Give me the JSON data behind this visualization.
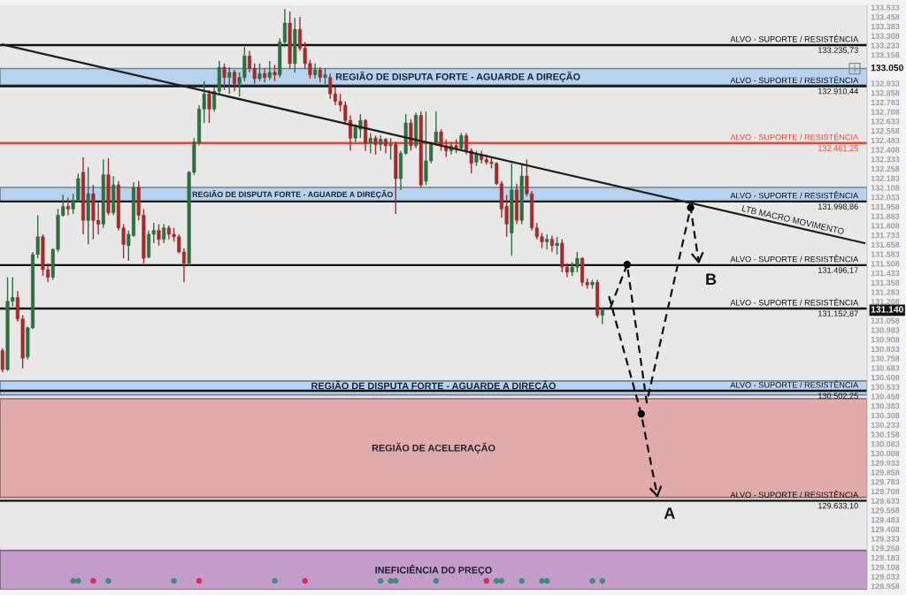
{
  "chart_data": {
    "type": "candlestick",
    "categories": [
      null,
      null,
      null,
      null,
      null,
      null,
      null,
      null,
      null,
      null,
      null,
      null,
      null,
      null,
      null,
      null,
      null,
      null,
      null,
      null,
      null,
      null,
      null,
      null,
      null,
      null,
      null,
      null,
      null,
      null,
      null,
      null,
      null,
      null,
      null,
      null,
      null,
      null,
      null,
      null,
      null,
      null,
      null,
      null,
      null,
      null,
      null,
      null,
      null,
      null,
      null,
      null,
      null,
      null,
      null,
      null,
      null,
      null,
      null,
      null,
      null,
      null,
      null,
      null,
      null,
      null,
      null,
      null,
      null,
      null,
      null,
      null,
      null,
      null,
      null,
      null,
      null,
      null,
      null,
      null,
      null,
      null,
      null,
      null,
      null,
      null,
      null,
      null,
      null,
      null,
      null,
      null,
      null,
      null,
      null,
      null,
      null,
      null,
      null,
      null,
      null,
      null,
      null,
      null,
      null,
      null,
      null,
      null,
      null,
      null,
      null,
      null,
      null,
      null,
      null,
      null,
      null,
      null,
      null,
      null,
      null,
      null,
      null,
      null,
      null,
      null,
      null,
      null,
      null,
      null,
      null,
      null,
      null,
      null,
      null,
      null,
      null,
      null,
      null,
      null,
      null,
      null,
      null,
      null,
      null,
      null,
      null,
      null,
      null,
      null,
      null,
      null,
      null,
      null,
      null,
      null,
      null,
      null,
      null,
      null,
      null,
      null,
      null,
      null,
      null,
      null,
      null,
      null,
      null,
      null,
      null,
      null
    ],
    "ohlc": [
      [
        130.82,
        130.84,
        130.65,
        130.67
      ],
      [
        130.67,
        131.4,
        130.66,
        131.21
      ],
      [
        131.21,
        131.4,
        131.17,
        131.24
      ],
      [
        131.24,
        131.29,
        131.05,
        131.07
      ],
      [
        131.07,
        131.1,
        130.68,
        130.76
      ],
      [
        130.77,
        131.01,
        130.75,
        131.0
      ],
      [
        131.0,
        131.6,
        130.99,
        131.58
      ],
      [
        131.58,
        131.89,
        131.55,
        131.72
      ],
      [
        131.72,
        131.74,
        131.41,
        131.46
      ],
      [
        131.46,
        131.51,
        131.36,
        131.4
      ],
      [
        131.4,
        131.63,
        131.38,
        131.62
      ],
      [
        131.62,
        131.94,
        131.6,
        131.89
      ],
      [
        131.89,
        132.05,
        131.88,
        131.96
      ],
      [
        131.96,
        132.03,
        131.89,
        131.94
      ],
      [
        131.94,
        132.06,
        131.9,
        132.01
      ],
      [
        132.01,
        132.22,
        131.99,
        132.18
      ],
      [
        132.23,
        132.35,
        131.74,
        131.85
      ],
      [
        131.85,
        132.27,
        131.66,
        132.06
      ],
      [
        132.06,
        132.13,
        131.7,
        131.85
      ],
      [
        131.85,
        131.99,
        131.74,
        131.82
      ],
      [
        131.82,
        132.33,
        131.79,
        132.21
      ],
      [
        132.21,
        132.34,
        131.89,
        131.91
      ],
      [
        131.91,
        132.2,
        131.89,
        132.13
      ],
      [
        132.13,
        132.16,
        131.77,
        131.79
      ],
      [
        131.79,
        131.82,
        131.55,
        131.66
      ],
      [
        131.65,
        131.77,
        131.53,
        131.74
      ],
      [
        131.73,
        132.15,
        131.72,
        132.11
      ],
      [
        132.11,
        132.16,
        131.85,
        131.89
      ],
      [
        131.89,
        131.94,
        131.51,
        131.55
      ],
      [
        131.56,
        131.77,
        131.55,
        131.74
      ],
      [
        131.74,
        131.83,
        131.67,
        131.77
      ],
      [
        131.77,
        131.82,
        131.65,
        131.7
      ],
      [
        131.7,
        131.82,
        131.67,
        131.79
      ],
      [
        131.79,
        131.81,
        131.7,
        131.74
      ],
      [
        131.74,
        131.79,
        131.68,
        131.72
      ],
      [
        131.72,
        131.74,
        131.59,
        131.6
      ],
      [
        131.6,
        131.63,
        131.36,
        131.51
      ],
      [
        131.51,
        132.24,
        131.49,
        132.23
      ],
      [
        132.23,
        132.5,
        132.21,
        132.47
      ],
      [
        132.46,
        132.76,
        132.44,
        132.73
      ],
      [
        132.73,
        132.95,
        132.62,
        132.85
      ],
      [
        132.85,
        132.88,
        132.62,
        132.73
      ],
      [
        132.73,
        132.9,
        132.71,
        132.87
      ],
      [
        132.87,
        133.11,
        132.85,
        133.06
      ],
      [
        133.06,
        133.09,
        132.88,
        132.98
      ],
      [
        132.98,
        133.06,
        132.85,
        133.02
      ],
      [
        133.02,
        133.04,
        132.87,
        132.93
      ],
      [
        132.93,
        133.02,
        132.83,
        132.98
      ],
      [
        132.98,
        133.22,
        132.95,
        133.15
      ],
      [
        133.15,
        133.19,
        133.02,
        133.05
      ],
      [
        133.05,
        133.09,
        132.93,
        132.97
      ],
      [
        132.97,
        133.09,
        132.95,
        133.01
      ],
      [
        133.01,
        133.05,
        132.94,
        132.98
      ],
      [
        132.98,
        133.11,
        132.96,
        133.02
      ],
      [
        133.02,
        133.08,
        132.95,
        133.0
      ],
      [
        133.0,
        133.29,
        132.98,
        133.26
      ],
      [
        133.26,
        133.52,
        133.22,
        133.41
      ],
      [
        133.41,
        133.5,
        133.05,
        133.09
      ],
      [
        133.09,
        133.45,
        133.02,
        133.36
      ],
      [
        133.36,
        133.46,
        133.19,
        133.21
      ],
      [
        133.21,
        133.26,
        133.05,
        133.09
      ],
      [
        133.09,
        133.12,
        132.97,
        133.0
      ],
      [
        133.0,
        133.09,
        132.97,
        133.04
      ],
      [
        133.04,
        133.06,
        132.94,
        132.98
      ],
      [
        132.98,
        133.05,
        132.93,
        133.0
      ],
      [
        132.98,
        133.01,
        132.81,
        132.85
      ],
      [
        132.85,
        132.9,
        132.76,
        132.79
      ],
      [
        132.79,
        132.85,
        132.71,
        132.76
      ],
      [
        132.76,
        132.79,
        132.61,
        132.64
      ],
      [
        132.64,
        132.68,
        132.4,
        132.5
      ],
      [
        132.5,
        132.61,
        132.47,
        132.59
      ],
      [
        132.57,
        132.69,
        132.5,
        132.64
      ],
      [
        132.64,
        132.65,
        132.4,
        132.46
      ],
      [
        132.46,
        132.54,
        132.38,
        132.5
      ],
      [
        132.5,
        132.52,
        132.37,
        132.45
      ],
      [
        132.45,
        132.52,
        132.4,
        132.49
      ],
      [
        132.49,
        132.5,
        132.38,
        132.44
      ],
      [
        132.44,
        132.5,
        132.33,
        132.45
      ],
      [
        132.45,
        132.47,
        131.9,
        132.18
      ],
      [
        132.18,
        132.4,
        132.09,
        132.38
      ],
      [
        132.38,
        132.69,
        132.37,
        132.62
      ],
      [
        132.62,
        132.65,
        132.4,
        132.44
      ],
      [
        132.44,
        132.7,
        132.42,
        132.68
      ],
      [
        132.68,
        132.71,
        132.11,
        132.13
      ],
      [
        132.16,
        132.71,
        132.13,
        132.32
      ],
      [
        132.32,
        132.47,
        132.3,
        132.46
      ],
      [
        132.46,
        132.71,
        132.44,
        132.55
      ],
      [
        132.55,
        132.57,
        132.4,
        132.44
      ],
      [
        132.44,
        132.49,
        132.35,
        132.4
      ],
      [
        132.4,
        132.47,
        132.37,
        132.44
      ],
      [
        132.44,
        132.49,
        132.38,
        132.42
      ],
      [
        132.42,
        132.54,
        132.4,
        132.52
      ],
      [
        132.52,
        132.54,
        132.37,
        132.4
      ],
      [
        132.4,
        132.42,
        132.22,
        132.3
      ],
      [
        132.31,
        132.4,
        132.28,
        132.37
      ],
      [
        132.37,
        132.4,
        132.3,
        132.33
      ],
      [
        132.33,
        132.37,
        132.29,
        132.31
      ],
      [
        132.31,
        132.35,
        132.26,
        132.3
      ],
      [
        132.3,
        132.31,
        132.13,
        132.14
      ],
      [
        132.14,
        132.16,
        131.87,
        131.94
      ],
      [
        131.96,
        132.05,
        131.72,
        131.82
      ],
      [
        131.75,
        132.3,
        131.57,
        132.09
      ],
      [
        132.09,
        132.14,
        131.82,
        131.85
      ],
      [
        131.85,
        132.3,
        131.82,
        132.2
      ],
      [
        132.2,
        132.33,
        132.04,
        132.06
      ],
      [
        132.06,
        132.08,
        131.77,
        131.79
      ],
      [
        131.79,
        131.83,
        131.7,
        131.72
      ],
      [
        131.72,
        131.75,
        131.63,
        131.68
      ],
      [
        131.68,
        131.74,
        131.62,
        131.7
      ],
      [
        131.7,
        131.73,
        131.6,
        131.65
      ],
      [
        131.65,
        131.72,
        131.58,
        131.67
      ],
      [
        131.67,
        131.7,
        131.44,
        131.48
      ],
      [
        131.48,
        131.51,
        131.4,
        131.44
      ],
      [
        131.44,
        131.52,
        131.41,
        131.48
      ],
      [
        131.48,
        131.6,
        131.44,
        131.55
      ],
      [
        131.55,
        131.56,
        131.33,
        131.36
      ],
      [
        131.36,
        131.39,
        131.31,
        131.34
      ],
      [
        131.34,
        131.38,
        131.31,
        131.36
      ],
      [
        131.36,
        131.38,
        131.08,
        131.1
      ],
      [
        131.1,
        131.16,
        131.03,
        131.14
      ],
      null,
      null,
      null,
      null,
      null,
      null,
      null,
      null,
      null,
      null,
      null,
      null,
      null,
      null,
      null,
      null,
      null,
      null,
      null,
      null,
      null,
      null,
      null,
      null,
      null,
      null,
      null,
      null,
      null,
      null,
      null,
      null,
      null,
      null,
      null,
      null,
      null,
      null,
      null,
      null,
      null,
      null,
      null,
      null,
      null,
      null,
      null,
      null,
      null,
      null,
      null,
      null
    ],
    "colors": [
      "#a02c2c",
      "#2f6e3f",
      "#2f6e3f",
      "#a02c2c",
      "#a02c2c",
      "#2f6e3f",
      "#2f6e3f",
      "#2f6e3f",
      "#a02c2c",
      "#a02c2c",
      "#2f6e3f",
      "#2f6e3f",
      "#2f6e3f",
      "#a02c2c",
      "#2f6e3f",
      "#2f6e3f",
      "#a02c2c",
      "#2f6e3f",
      "#a02c2c",
      "#a02c2c",
      "#2f6e3f",
      "#a02c2c",
      "#2f6e3f",
      "#a02c2c",
      "#a02c2c",
      "#2f6e3f",
      "#2f6e3f",
      "#a02c2c",
      "#a02c2c",
      "#2f6e3f",
      "#2f6e3f",
      "#a02c2c",
      "#2f6e3f",
      "#a02c2c",
      "#a02c2c",
      "#a02c2c",
      "#a02c2c",
      "#2f6e3f",
      "#2f6e3f",
      "#2f6e3f",
      "#2f6e3f",
      "#a02c2c",
      "#2f6e3f",
      "#2f6e3f",
      "#a02c2c",
      "#2f6e3f",
      "#a02c2c",
      "#2f6e3f",
      "#2f6e3f",
      "#a02c2c",
      "#a02c2c",
      "#2f6e3f",
      "#a02c2c",
      "#2f6e3f",
      "#a02c2c",
      "#2f6e3f",
      "#2f6e3f",
      "#a02c2c",
      "#2f6e3f",
      "#a02c2c",
      "#a02c2c",
      "#a02c2c",
      "#2f6e3f",
      "#a02c2c",
      "#2f6e3f",
      "#a02c2c",
      "#a02c2c",
      "#a02c2c",
      "#a02c2c",
      "#a02c2c",
      "#2f6e3f",
      "#2f6e3f",
      "#a02c2c",
      "#2f6e3f",
      "#a02c2c",
      "#2f6e3f",
      "#a02c2c",
      "#2f6e3f",
      "#a02c2c",
      "#2f6e3f",
      "#2f6e3f",
      "#a02c2c",
      "#2f6e3f",
      "#a02c2c",
      "#2f6e3f",
      "#2f6e3f",
      "#2f6e3f",
      "#a02c2c",
      "#a02c2c",
      "#2f6e3f",
      "#a02c2c",
      "#2f6e3f",
      "#a02c2c",
      "#a02c2c",
      "#2f6e3f",
      "#a02c2c",
      "#a02c2c",
      "#a02c2c",
      "#a02c2c",
      "#a02c2c",
      "#a02c2c",
      "#2f6e3f",
      "#a02c2c",
      "#2f6e3f",
      "#a02c2c",
      "#a02c2c",
      "#a02c2c",
      "#a02c2c",
      "#2f6e3f",
      "#a02c2c",
      "#2f6e3f",
      "#a02c2c",
      "#a02c2c",
      "#2f6e3f",
      "#2f6e3f",
      "#a02c2c",
      "#a02c2c",
      "#2f6e3f",
      "#a02c2c",
      "#2f6e3f",
      null,
      null,
      null,
      null,
      null,
      null,
      null,
      null,
      null,
      null,
      null,
      null,
      null,
      null,
      null,
      null,
      null,
      null,
      null,
      null,
      null,
      null,
      null,
      null,
      null,
      null,
      null,
      null,
      null,
      null,
      null,
      null,
      null,
      null,
      null,
      null,
      null,
      null,
      null,
      null,
      null,
      null,
      null,
      null,
      null,
      null,
      null,
      null,
      null,
      null,
      null,
      null
    ],
    "series": [
      {
        "type": "line",
        "name": "LTB MACRO MOVIMENTO",
        "color": "#1e1e1e",
        "values": [
          133.24,
          null,
          null,
          null,
          null,
          null,
          null,
          null,
          null,
          null,
          null,
          null,
          null,
          null,
          null,
          null,
          null,
          null,
          null,
          null,
          null,
          null,
          null,
          null,
          null,
          null,
          null,
          null,
          null,
          null,
          null,
          null,
          null,
          null,
          null,
          null,
          null,
          null,
          null,
          null,
          null,
          null,
          null,
          null,
          null,
          null,
          null,
          null,
          null,
          null,
          null,
          null,
          null,
          null,
          null,
          null,
          null,
          null,
          null,
          null,
          null,
          null,
          null,
          null,
          null,
          null,
          null,
          null,
          null,
          null,
          null,
          null,
          null,
          null,
          null,
          null,
          null,
          null,
          null,
          null,
          null,
          null,
          null,
          null,
          null,
          null,
          null,
          null,
          null,
          null,
          null,
          null,
          null,
          null,
          null,
          null,
          null,
          null,
          null,
          null,
          null,
          null,
          null,
          null,
          null,
          null,
          null,
          null,
          null,
          null,
          null,
          null,
          null,
          null,
          null,
          null,
          null,
          null,
          null,
          null,
          null,
          null,
          null,
          null,
          null,
          null,
          null,
          null,
          null,
          null,
          null,
          null,
          null,
          null,
          null,
          null,
          null,
          null,
          null,
          null,
          null,
          null,
          null,
          null,
          null,
          null,
          null,
          null,
          null,
          null,
          null,
          null,
          null,
          null,
          null,
          null,
          null,
          null,
          null,
          null,
          null,
          null,
          null,
          null,
          null,
          null,
          null,
          null,
          null,
          null,
          null,
          131.67
        ]
      },
      {
        "type": "scatter",
        "color": "#3f8c7a",
        "marker": "circle",
        "values": [
          null,
          null,
          null,
          null,
          null,
          null,
          null,
          null,
          null,
          null,
          null,
          null,
          null,
          null,
          129.0,
          129.0,
          null,
          null,
          null,
          null,
          null,
          129.0,
          null,
          null,
          null,
          null,
          null,
          null,
          null,
          null,
          null,
          null,
          null,
          null,
          129.0,
          null,
          null,
          null,
          null,
          null,
          null,
          null,
          null,
          null,
          null,
          null,
          null,
          null,
          null,
          null,
          null,
          null,
          null,
          null,
          129.0,
          null,
          null,
          null,
          null,
          null,
          null,
          null,
          null,
          null,
          null,
          null,
          null,
          null,
          null,
          null,
          null,
          null,
          null,
          null,
          null,
          129.0,
          null,
          129.0,
          129.0,
          null,
          null,
          null,
          null,
          null,
          null,
          null,
          129.0,
          null,
          null,
          null,
          null,
          null,
          null,
          null,
          null,
          null,
          null,
          null,
          129.0,
          129.0,
          null,
          null,
          null,
          129.0,
          null,
          null,
          null,
          129.0,
          129.0,
          null,
          null,
          null,
          null,
          null,
          null,
          null,
          null,
          129.0,
          null,
          129.0,
          null,
          null,
          null,
          null,
          null,
          null,
          null,
          null,
          null,
          null,
          null,
          null,
          null,
          null,
          null,
          null,
          null,
          null,
          null,
          null,
          null,
          null,
          null,
          null,
          null,
          null,
          null,
          null,
          null,
          null,
          null,
          null,
          null,
          null,
          null,
          null,
          null,
          null,
          null,
          null,
          null,
          null,
          null,
          null,
          null,
          null,
          null,
          null,
          null,
          null,
          null,
          null
        ]
      },
      {
        "type": "scatter",
        "color": "#d32f4f",
        "marker": "circle",
        "values": [
          null,
          null,
          null,
          null,
          null,
          null,
          null,
          null,
          null,
          null,
          null,
          null,
          null,
          null,
          null,
          null,
          null,
          null,
          129.0,
          null,
          null,
          null,
          null,
          null,
          null,
          null,
          null,
          null,
          null,
          null,
          null,
          null,
          null,
          null,
          null,
          null,
          null,
          null,
          null,
          129.0,
          null,
          null,
          null,
          null,
          null,
          null,
          null,
          null,
          null,
          null,
          null,
          null,
          null,
          null,
          null,
          null,
          null,
          null,
          null,
          null,
          129.0,
          null,
          null,
          null,
          null,
          null,
          null,
          null,
          null,
          null,
          null,
          null,
          null,
          null,
          null,
          null,
          null,
          null,
          null,
          null,
          null,
          null,
          null,
          null,
          null,
          null,
          null,
          null,
          null,
          null,
          null,
          null,
          null,
          null,
          null,
          null,
          129.0,
          null,
          null,
          null,
          null,
          null,
          null,
          null,
          null,
          null,
          null,
          null,
          null,
          null,
          null,
          null,
          null,
          null,
          null,
          null,
          null,
          null,
          null,
          null,
          null,
          null,
          null,
          null,
          null,
          null,
          null,
          null,
          null,
          null,
          null,
          null,
          null,
          null,
          null,
          null,
          null,
          null,
          null,
          null,
          null,
          null,
          null,
          null,
          null,
          null,
          null,
          null,
          null,
          null,
          null,
          null,
          null,
          null,
          null,
          null,
          null,
          null,
          null,
          null,
          null,
          null,
          null,
          null,
          null,
          null,
          null,
          null,
          null,
          null,
          null,
          null
        ]
      }
    ],
    "ylim": [
      128.93,
      133.55
    ],
    "yticks": [
      133.533,
      133.458,
      133.383,
      133.308,
      133.233,
      133.158,
      132.933,
      132.858,
      132.783,
      132.708,
      132.633,
      132.558,
      132.483,
      132.408,
      132.333,
      132.258,
      132.183,
      132.108,
      132.033,
      131.958,
      131.883,
      131.808,
      131.733,
      131.658,
      131.583,
      131.508,
      131.433,
      131.358,
      131.283,
      131.208,
      131.058,
      130.983,
      130.908,
      130.833,
      130.758,
      130.683,
      130.608,
      130.533,
      130.458,
      130.383,
      130.308,
      130.233,
      130.158,
      130.083,
      130.008,
      129.933,
      129.858,
      129.783,
      129.708,
      129.633,
      129.558,
      129.483,
      129.408,
      129.333,
      129.258,
      129.183,
      129.108,
      129.033,
      128.958
    ],
    "tick_labels": "y",
    "bands": [
      {
        "axis": "y",
        "from": 132.92,
        "to": 133.05,
        "label": "REGIÃO DE DISPUTA FORTE - AGUARDE A DIREÇÃO",
        "color": "#b7d3ef"
      },
      {
        "axis": "y",
        "from": 132.0,
        "to": 132.11,
        "label": "REGIÃO DE DISPUTA FORTE - AGUARDE A DIREÇÃO",
        "color": "#b7d3ef"
      },
      {
        "axis": "y",
        "from": 130.47,
        "to": 130.58,
        "label": "REGIÃO DE DISPUTA FORTE - AGUARDE A DIREÇÃO",
        "color": "#b7d3ef"
      },
      {
        "axis": "y",
        "from": 129.66,
        "to": 130.44,
        "label": "REGIÃO DE ACELERAÇÃO",
        "color": "#e2abab"
      },
      {
        "axis": "y",
        "from": 128.93,
        "to": 129.24,
        "label": "INEFICIÊNCIA DO PREÇO",
        "color": "#c49cc9"
      }
    ],
    "ref_lines": [
      {
        "axis": "y",
        "value": 133.23573,
        "label": "ALVO - SUPORTE / RESISTÊNCIA\n133.235,73",
        "color": "#111111"
      },
      {
        "axis": "y",
        "value": 132.91044,
        "label": "ALVO - SUPORTE / RESISTÊNCIA\n132.910,44",
        "color": "#111111"
      },
      {
        "axis": "y",
        "value": 132.46125,
        "label": "ALVO - SUPORTE / RESISTÊNCIA\n132.461,25",
        "color": "#e8473c"
      },
      {
        "axis": "y",
        "value": 131.99886,
        "label": "ALVO - SUPORTE / RESISTÊNCIA\n131.998,86",
        "color": "#111111"
      },
      {
        "axis": "y",
        "value": 131.49617,
        "label": "ALVO - SUPORTE / RESISTÊNCIA\n131.496,17",
        "color": "#111111"
      },
      {
        "axis": "y",
        "value": 131.15287,
        "label": "ALVO - SUPORTE / RESISTÊNCIA\n131.152,87",
        "color": "#111111"
      },
      {
        "axis": "y",
        "value": 130.50225,
        "label": "ALVO - SUPORTE / RESISTÊNCIA\n130.502,25",
        "color": "#111111"
      },
      {
        "axis": "y",
        "value": 129.6331,
        "label": "ALVO - SUPORTE / RESISTÊNCIA\n129.633,10",
        "color": "#111111"
      }
    ],
    "annotations": [
      {
        "text": "133.050",
        "y": 133.05
      },
      {
        "text": "131.140",
        "y": 131.14
      },
      "A",
      "B"
    ]
  }
}
